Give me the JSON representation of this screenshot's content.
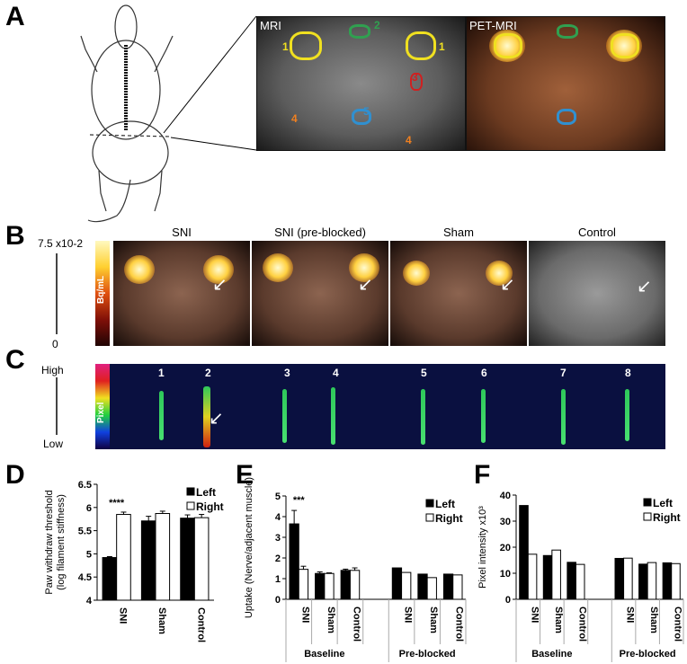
{
  "panels": {
    "a": "A",
    "b": "B",
    "c": "C",
    "d": "D",
    "e": "E",
    "f": "F"
  },
  "panel_a": {
    "mri_title": "MRI",
    "petmri_title": "PET-MRI",
    "roi_labels": [
      "1",
      "2",
      "1",
      "3",
      "4",
      "4",
      "5"
    ],
    "roi_colors": {
      "1": "#f0e020",
      "2": "#30a050",
      "3": "#d02020",
      "4": "#f08020",
      "5": "#3090d0"
    }
  },
  "panel_b": {
    "columns": [
      "SNI",
      "SNI (pre-blocked)",
      "Sham",
      "Control"
    ],
    "scale_max": "7.5 x10-2",
    "scale_min": "0",
    "colorbar_label": "Bq/mL"
  },
  "panel_c": {
    "lanes": [
      "1",
      "2",
      "3",
      "4",
      "5",
      "6",
      "7",
      "8"
    ],
    "high": "High",
    "low": "Low",
    "colorbar_label": "Pixel"
  },
  "chart_data": [
    {
      "type": "bar",
      "ylabel": "Paw withdraw threshold (log filament stiffness)",
      "ylim": [
        4,
        6.5
      ],
      "yticks": [
        "4",
        "4.5",
        "5",
        "5.5",
        "6",
        "6.5"
      ],
      "categories": [
        "SNI",
        "Sham",
        "Control"
      ],
      "groups": [],
      "series": [
        {
          "name": "Left",
          "values": [
            4.92,
            5.71,
            5.77
          ],
          "errors": [
            0.02,
            0.1,
            0.07
          ],
          "color": "#000000"
        },
        {
          "name": "Right",
          "values": [
            5.85,
            5.87,
            5.78
          ],
          "errors": [
            0.05,
            0.05,
            0.07
          ],
          "color": "#ffffff"
        }
      ],
      "annotations": [
        {
          "category": "SNI",
          "text": "****"
        }
      ],
      "legend": "top-right"
    },
    {
      "type": "bar",
      "ylabel": "Uptake (Nerve/adjacent muscle)",
      "ylim": [
        0,
        5
      ],
      "yticks": [
        "0",
        "1",
        "2",
        "3",
        "4",
        "5"
      ],
      "categories": [
        "SNI",
        "Sham",
        "Control",
        "SNI",
        "Sham",
        "Control"
      ],
      "groups": [
        "Baseline",
        "Pre-blocked"
      ],
      "series": [
        {
          "name": "Left",
          "values": [
            3.65,
            1.25,
            1.4,
            1.52,
            1.22,
            1.22
          ],
          "errors": [
            0.65,
            0.08,
            0.06,
            0,
            0,
            0
          ],
          "color": "#000000"
        },
        {
          "name": "Right",
          "values": [
            1.45,
            1.25,
            1.4,
            1.3,
            1.05,
            1.18
          ],
          "errors": [
            0.15,
            0.03,
            0.12,
            0,
            0,
            0
          ],
          "color": "#ffffff"
        }
      ],
      "annotations": [
        {
          "category": "SNI",
          "text": "***"
        }
      ],
      "legend": "top-right"
    },
    {
      "type": "bar",
      "ylabel": "Pixel intensity x10³",
      "ylim": [
        0,
        40
      ],
      "yticks": [
        "0",
        "10",
        "20",
        "30",
        "40"
      ],
      "categories": [
        "SNI",
        "Sham",
        "Control",
        "SNI",
        "Sham",
        "Control"
      ],
      "groups": [
        "Baseline",
        "Pre-blocked"
      ],
      "series": [
        {
          "name": "Left",
          "values": [
            36,
            16.8,
            14.2,
            15.7,
            13.5,
            14
          ],
          "errors": [
            0,
            0,
            0,
            0,
            0,
            0
          ],
          "color": "#000000"
        },
        {
          "name": "Right",
          "values": [
            17.3,
            18.9,
            13.4,
            15.8,
            14.1,
            13.7
          ],
          "errors": [
            0,
            0,
            0,
            0,
            0,
            0
          ],
          "color": "#ffffff"
        }
      ],
      "annotations": [],
      "legend": "top-right"
    }
  ]
}
